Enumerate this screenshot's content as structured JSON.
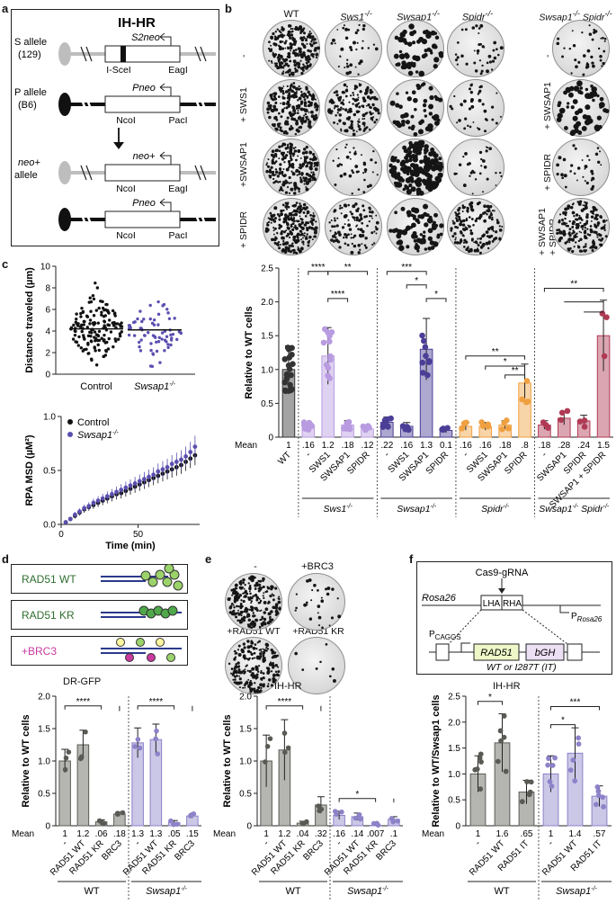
{
  "panel_letters": {
    "a": "a",
    "b": "b",
    "c": "c",
    "d": "d",
    "e": "e",
    "f": "f"
  },
  "colors": {
    "wt": "#333333",
    "sws1": "#b89be0",
    "swsap1": "#4a3e96",
    "spidr": "#f0a040",
    "dko": "#b03a55",
    "d_wt": "#5a5a55",
    "d_swsap1": "#8c82c8",
    "rad51_wt": "#2e6e2e",
    "brc3": "#c83aa0",
    "bead": "#9bd36a"
  },
  "panel_a": {
    "title": "IH-HR",
    "s_allele": "S allele",
    "s_strain": "(129)",
    "p_allele": "P allele",
    "p_strain": "(B6)",
    "neo_allele_1": "neo+",
    "neo_allele_2": "allele",
    "s2neo": "S2neo",
    "isce": "I-SceI",
    "eagl": "EagI",
    "pneo": "Pneo",
    "ncol": "NcoI",
    "pacl": "PacI",
    "neoplus": "neo+"
  },
  "panel_b": {
    "columns": [
      "WT",
      "Sws1",
      "Swsap1",
      "Spidr"
    ],
    "col_sup": "-/-",
    "dko_header_1": "Swsap1",
    "dko_header_2": "Spidr",
    "rows": [
      "-",
      "+ SWS1",
      "+SWSAP1",
      "+ SPIDR"
    ],
    "dko_rows": [
      "-",
      "+ SWSAP1",
      "+ SPIDR",
      "+ SWSAP1",
      "+ SPIDR"
    ]
  },
  "panel_c": {
    "scatter_ylabel": "Distance traveled (µm)",
    "control": "Control",
    "swsap1": "Swsap1",
    "sup": "-/-",
    "msd_ylabel": "RPA MSD (µM²)",
    "msd_xlabel": "Time (min)",
    "legend_control": "Control",
    "legend_swsap1": "Swsap1"
  },
  "panel_d": {
    "legend": [
      "RAD51 WT",
      "RAD51 KR",
      "+BRC3"
    ],
    "assay": "DR-GFP",
    "ylabel": "Relative to WT cells",
    "mean_label": "Mean",
    "group_wt": "WT",
    "group_swsap1": "Swsap1",
    "sup": "-/-"
  },
  "panel_e": {
    "dish_labels": [
      "-",
      "+BRC3",
      "+RAD51 WT",
      "+RAD51 KR"
    ],
    "assay": "IH-HR",
    "ylabel": "Relative to WT cells",
    "mean_label": "Mean",
    "group_wt": "WT",
    "group_swsap1": "Swsap1",
    "sup": "-/-"
  },
  "panel_f": {
    "cas9": "Cas9-gRNA",
    "rosa26": "Rosa26",
    "lha": "LHA",
    "rha": "RHA",
    "p_rosa26": "P",
    "p_rosa26_sub": "Rosa26",
    "pcaggs": "P",
    "pcaggs_sub": "CAGGS",
    "rad51": "RAD51",
    "bgh": "bGH",
    "variant_note": "WT or I287T (IT)",
    "assay": "IH-HR",
    "ylabel": "Relative to WT/Swsap1 cells",
    "mean_label": "Mean",
    "group_wt": "WT",
    "group_swsap1": "Swsap1",
    "sup": "-/-"
  },
  "chart_data": [
    {
      "id": "b_bar",
      "type": "bar",
      "title": "",
      "ylabel": "Relative to WT cells",
      "ylim": [
        0,
        2.5
      ],
      "yticks": [
        "0",
        "0.5",
        "1.0",
        "1.5",
        "2.0",
        "2.5"
      ],
      "mean_label": "Mean",
      "categories": [
        "WT",
        "-",
        "SWS1",
        "SWSAP1",
        "SPIDR",
        "-",
        "SWS1",
        "SWSAP1",
        "SPIDR",
        "-",
        "SWS1",
        "SWSAP1",
        "SPIDR",
        "-",
        "SWSAP1",
        "SPIDR",
        "SWSAP1 + SPIDR"
      ],
      "values": [
        1.0,
        0.16,
        1.2,
        0.18,
        0.12,
        0.22,
        0.16,
        1.3,
        0.1,
        0.16,
        0.16,
        0.18,
        0.8,
        0.18,
        0.28,
        0.24,
        1.5
      ],
      "mean_text": [
        "1",
        ".16",
        "1.2",
        ".18",
        ".12",
        ".22",
        ".16",
        "1.3",
        "0.1",
        ".16",
        ".16",
        ".18",
        ".8",
        ".18",
        ".28",
        ".24",
        "1.5"
      ],
      "groups": [
        "Sws1",
        "Swsap1",
        "Spidr",
        "Swsap1 Spidr"
      ],
      "group_sup": "-/-",
      "significance": [
        "****",
        "****",
        "**",
        "***",
        "*",
        "*",
        "**",
        "*",
        "**",
        "**"
      ]
    },
    {
      "id": "c_scatter",
      "type": "scatter",
      "ylabel": "Distance traveled (µm)",
      "ylim": [
        0,
        10
      ],
      "yticks": [
        "0",
        "2",
        "4",
        "6",
        "8",
        "10"
      ],
      "categories": [
        "Control",
        "Swsap1-/-"
      ],
      "means": [
        4.2,
        4.1
      ]
    },
    {
      "id": "c_msd",
      "type": "line",
      "xlabel": "Time (min)",
      "ylabel": "RPA MSD (µM²)",
      "xlim": [
        0,
        90
      ],
      "ylim": [
        0,
        1.0
      ],
      "xticks": [
        "0",
        "50"
      ],
      "yticks": [
        "0.0",
        "0.5",
        "1.0"
      ],
      "series": [
        {
          "name": "Control",
          "x": [
            3,
            6,
            9,
            12,
            15,
            18,
            21,
            24,
            27,
            30,
            33,
            36,
            39,
            42,
            45,
            48,
            51,
            54,
            57,
            60,
            63,
            66,
            69,
            72,
            75,
            78,
            81,
            84,
            87
          ],
          "values": [
            0.02,
            0.05,
            0.08,
            0.11,
            0.14,
            0.16,
            0.18,
            0.2,
            0.22,
            0.24,
            0.26,
            0.28,
            0.29,
            0.31,
            0.33,
            0.35,
            0.37,
            0.39,
            0.41,
            0.43,
            0.45,
            0.47,
            0.49,
            0.51,
            0.53,
            0.55,
            0.58,
            0.61,
            0.64
          ]
        },
        {
          "name": "Swsap1-/-",
          "x": [
            3,
            6,
            9,
            12,
            15,
            18,
            21,
            24,
            27,
            30,
            33,
            36,
            39,
            42,
            45,
            48,
            51,
            54,
            57,
            60,
            63,
            66,
            69,
            72,
            75,
            78,
            81,
            84,
            87
          ],
          "values": [
            0.02,
            0.05,
            0.09,
            0.12,
            0.15,
            0.17,
            0.2,
            0.22,
            0.24,
            0.26,
            0.28,
            0.3,
            0.32,
            0.34,
            0.36,
            0.38,
            0.4,
            0.42,
            0.44,
            0.46,
            0.49,
            0.51,
            0.53,
            0.56,
            0.58,
            0.6,
            0.63,
            0.67,
            0.72
          ]
        }
      ]
    },
    {
      "id": "d_bar",
      "type": "bar",
      "ylabel": "Relative to WT cells",
      "ylim": [
        0,
        2.0
      ],
      "yticks": [
        "0",
        "0.5",
        "1.0",
        "1.5",
        "2.0"
      ],
      "categories": [
        "-",
        "RAD51 WT",
        "RAD51 KR",
        "BRC3",
        "-",
        "RAD51 WT",
        "RAD51 KR",
        "BRC3"
      ],
      "values": [
        1.0,
        1.25,
        0.06,
        0.18,
        1.28,
        1.33,
        0.05,
        0.15
      ],
      "mean_text": [
        "1",
        "1.2",
        ".06",
        ".18",
        "1.3",
        "1.3",
        ".05",
        ".15"
      ],
      "significance": [
        "****",
        "****"
      ]
    },
    {
      "id": "e_bar",
      "type": "bar",
      "ylabel": "Relative to WT cells",
      "ylim": [
        0,
        2.0
      ],
      "yticks": [
        "0",
        "0.5",
        "1.0",
        "1.5",
        "2.0"
      ],
      "categories": [
        "-",
        "RAD51 WT",
        "RAD51 KR",
        "BRC3",
        "-",
        "RAD51 WT",
        "RAD51 KR",
        "BRC3"
      ],
      "values": [
        1.0,
        1.17,
        0.04,
        0.32,
        0.16,
        0.14,
        0.007,
        0.1
      ],
      "mean_text": [
        "1",
        "1.2",
        ".04",
        ".32",
        ".16",
        ".14",
        ".007",
        ".1"
      ],
      "significance": [
        "****",
        "*"
      ]
    },
    {
      "id": "f_bar",
      "type": "bar",
      "ylabel": "Relative to WT/Swsap1 cells",
      "ylim": [
        0,
        2.5
      ],
      "yticks": [
        "0",
        "0.5",
        "1.0",
        "1.5",
        "2.0",
        "2.5"
      ],
      "categories": [
        "-",
        "RAD51 WT",
        "RAD51 IT",
        "-",
        "RAD51 WT",
        "RAD51 IT"
      ],
      "values": [
        1.0,
        1.6,
        0.65,
        1.0,
        1.4,
        0.57
      ],
      "mean_text": [
        "1",
        "1.6",
        ".65",
        "1",
        "1.4",
        ".57"
      ],
      "significance": [
        "*",
        "*",
        "***"
      ]
    }
  ]
}
